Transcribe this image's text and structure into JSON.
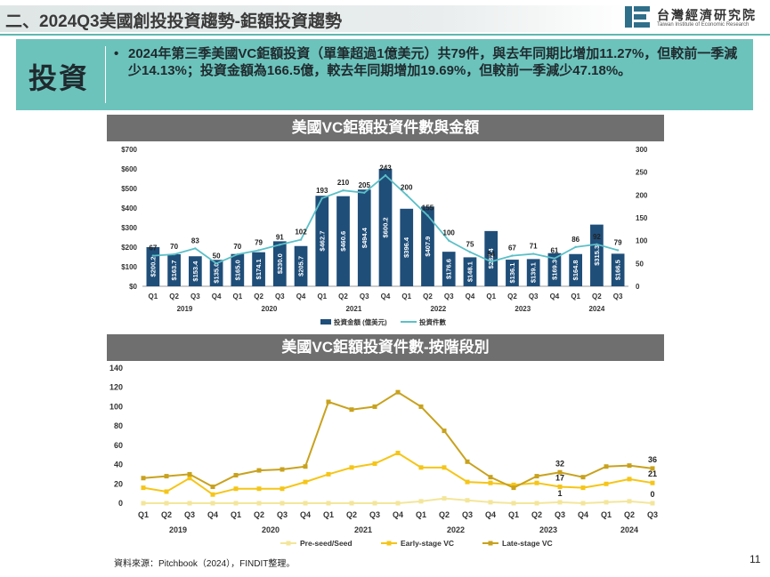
{
  "header": {
    "title": "二、2024Q3美國創投投資趨勢-鉅額投資趨勢"
  },
  "logo": {
    "name": "台灣經濟研究院",
    "subtitle": "Taiwan Institute of Economic Research"
  },
  "panel": {
    "label": "投資",
    "bullet": "•",
    "text": "2024年第三季美國VC鉅額投資（單筆超過1億美元）共79件，與去年同期比增加11.27%，但較前一季減少14.13%；投資金額為166.5億，較去年同期增加19.69%，但較前一季減少47.18%。"
  },
  "source": "資料來源：Pitchbook（2024），FINDIT整理。",
  "page_number": "11",
  "colors": {
    "bar": "#1f4e79",
    "line": "#5bc0c8",
    "pre_seed": "#f3e69a",
    "early_stage": "#f5c518",
    "late_stage": "#c8a21e"
  },
  "chart_data": [
    {
      "type": "bar",
      "title": "美國VC鉅額投資件數與金額",
      "quarters": [
        "Q1",
        "Q2",
        "Q3",
        "Q4",
        "Q1",
        "Q2",
        "Q3",
        "Q4",
        "Q1",
        "Q2",
        "Q3",
        "Q4",
        "Q1",
        "Q2",
        "Q3",
        "Q4",
        "Q1",
        "Q2",
        "Q3",
        "Q4",
        "Q1",
        "Q2",
        "Q3"
      ],
      "years": [
        {
          "label": "2019",
          "start": 0,
          "end": 3
        },
        {
          "label": "2020",
          "start": 4,
          "end": 7
        },
        {
          "label": "2021",
          "start": 8,
          "end": 11
        },
        {
          "label": "2022",
          "start": 12,
          "end": 15
        },
        {
          "label": "2023",
          "start": 16,
          "end": 19
        },
        {
          "label": "2024",
          "start": 20,
          "end": 22
        }
      ],
      "y_left_ticks": [
        "$0",
        "$100",
        "$200",
        "$300",
        "$400",
        "$500",
        "$600",
        "$700"
      ],
      "y_left_range": [
        0,
        700
      ],
      "y_right_ticks": [
        "0",
        "50",
        "100",
        "150",
        "200",
        "250",
        "300"
      ],
      "y_right_range": [
        0,
        300
      ],
      "series": [
        {
          "name": "投資金額 (億美元)",
          "kind": "bar",
          "values": [
            200.2,
            163.7,
            153.4,
            135.0,
            165.0,
            174.1,
            230.0,
            205.7,
            462.7,
            460.6,
            494.4,
            600.2,
            396.4,
            407.9,
            176.6,
            148.1,
            282.4,
            136.1,
            139.1,
            169.3,
            164.8,
            315.3,
            166.5
          ],
          "labels": [
            "$200.2",
            "$163.7",
            "$153.4",
            "$135.0",
            "$165.0",
            "$174.1",
            "$230.0",
            "$205.7",
            "$462.7",
            "$460.6",
            "$494.4",
            "$600.2",
            "$396.4",
            "$407.9",
            "$176.6",
            "$148.1",
            "$282.4",
            "$136.1",
            "$139.1",
            "$169.3",
            "$164.8",
            "$315.3",
            "$166.5"
          ]
        },
        {
          "name": "投資件數",
          "kind": "line",
          "values": [
            67,
            70,
            83,
            50,
            70,
            79,
            91,
            102,
            193,
            210,
            205,
            243,
            200,
            155,
            100,
            75,
            54,
            67,
            71,
            61,
            86,
            92,
            79
          ],
          "labels": [
            "67",
            "70",
            "83",
            "50",
            "70",
            "79",
            "91",
            "102",
            "193",
            "210",
            "205",
            "243",
            "200",
            "155",
            "100",
            "75",
            "54",
            "67",
            "71",
            "61",
            "86",
            "92",
            "79"
          ]
        }
      ]
    },
    {
      "type": "line",
      "title": "美國VC鉅額投資件數-按階段別",
      "quarters": [
        "Q1",
        "Q2",
        "Q3",
        "Q4",
        "Q1",
        "Q2",
        "Q3",
        "Q4",
        "Q1",
        "Q2",
        "Q3",
        "Q4",
        "Q1",
        "Q2",
        "Q3",
        "Q4",
        "Q1",
        "Q2",
        "Q3",
        "Q4",
        "Q1",
        "Q2",
        "Q3"
      ],
      "years": [
        {
          "label": "2019",
          "start": 0,
          "end": 3
        },
        {
          "label": "2020",
          "start": 4,
          "end": 7
        },
        {
          "label": "2021",
          "start": 8,
          "end": 11
        },
        {
          "label": "2022",
          "start": 12,
          "end": 15
        },
        {
          "label": "2023",
          "start": 16,
          "end": 19
        },
        {
          "label": "2024",
          "start": 20,
          "end": 22
        }
      ],
      "y_ticks": [
        "0",
        "20",
        "40",
        "60",
        "80",
        "100",
        "120",
        "140"
      ],
      "y_range": [
        0,
        140
      ],
      "series": [
        {
          "name": "Pre-seed/Seed",
          "values": [
            0,
            0,
            0,
            0,
            0,
            0,
            0,
            0,
            0,
            0,
            0,
            0,
            2,
            5,
            3,
            1,
            0,
            0,
            1,
            0,
            1,
            2,
            0
          ]
        },
        {
          "name": "Early-stage VC",
          "values": [
            16,
            12,
            26,
            9,
            15,
            15,
            15,
            22,
            30,
            37,
            41,
            52,
            37,
            37,
            22,
            21,
            19,
            21,
            17,
            16,
            20,
            25,
            21
          ]
        },
        {
          "name": "Late-stage VC",
          "values": [
            26,
            28,
            30,
            17,
            29,
            34,
            35,
            38,
            105,
            97,
            100,
            115,
            100,
            75,
            43,
            27,
            16,
            28,
            32,
            27,
            38,
            39,
            36
          ]
        }
      ],
      "annotations": [
        {
          "series": "Late-stage VC",
          "index": 18,
          "label": "32"
        },
        {
          "series": "Early-stage VC",
          "index": 18,
          "label": "17"
        },
        {
          "series": "Pre-seed/Seed",
          "index": 18,
          "label": "1"
        },
        {
          "series": "Late-stage VC",
          "index": 22,
          "label": "36"
        },
        {
          "series": "Early-stage VC",
          "index": 22,
          "label": "21"
        },
        {
          "series": "Pre-seed/Seed",
          "index": 22,
          "label": "0"
        }
      ]
    }
  ]
}
